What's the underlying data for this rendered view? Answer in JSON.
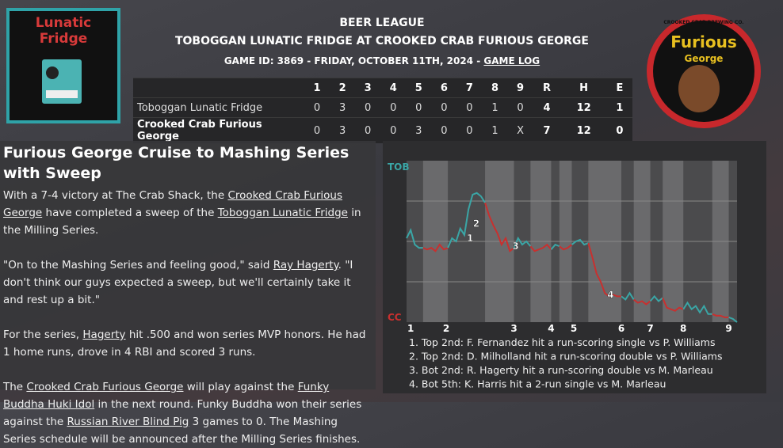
{
  "header": {
    "league": "BEER LEAGUE",
    "title": "TOBOGGAN LUNATIC FRIDGE AT CROOKED CRAB FURIOUS GEORGE",
    "game_info": "GAME ID: 3869 - FRIDAY, OCTOBER 11TH, 2024 - ",
    "game_log_link": "GAME LOG"
  },
  "logos": {
    "away": [
      "Lunatic",
      "Fridge"
    ],
    "home_brewery": "CROOKED CRAB BREWING CO.",
    "home": [
      "Furious",
      "George"
    ]
  },
  "box_score": {
    "columns": [
      "1",
      "2",
      "3",
      "4",
      "5",
      "6",
      "7",
      "8",
      "9",
      "R",
      "H",
      "E"
    ],
    "rows": [
      {
        "team": "Toboggan Lunatic Fridge",
        "cells": [
          0,
          3,
          0,
          0,
          0,
          0,
          0,
          1,
          0,
          4,
          12,
          1
        ]
      },
      {
        "team": "Crooked Crab Furious George",
        "cells": [
          0,
          3,
          0,
          0,
          3,
          0,
          0,
          1,
          "X",
          7,
          12,
          0
        ]
      }
    ]
  },
  "article": {
    "headline": "Furious George Cruise to Mashing Series with Sweep",
    "paragraphs": [
      [
        {
          "text": "With a 7-4 victory at The Crab Shack, the "
        },
        {
          "text": "Crooked Crab Furious George",
          "link": true
        },
        {
          "text": " have completed a sweep of the "
        },
        {
          "text": "Toboggan Lunatic Fridge",
          "link": true
        },
        {
          "text": " in the Milling Series."
        }
      ],
      [
        {
          "text": "\"On to the Mashing Series and feeling good,\" said "
        },
        {
          "text": "Ray Hagerty",
          "link": true
        },
        {
          "text": ". \"I don't think our guys expected a sweep, but we'll certainly take it and rest up a bit.\""
        }
      ],
      [
        {
          "text": "For the series, "
        },
        {
          "text": "Hagerty",
          "link": true
        },
        {
          "text": " hit .500 and won series MVP honors. He had 1 home runs, drove in 4 RBI and scored 3 runs."
        }
      ],
      [
        {
          "text": "The "
        },
        {
          "text": "Crooked Crab Furious George",
          "link": true
        },
        {
          "text": " will play against the "
        },
        {
          "text": "Funky Buddha Huki Idol",
          "link": true
        },
        {
          "text": " in the next round. Funky Buddha won their series against the "
        },
        {
          "text": "Russian River Blind Pig",
          "link": true
        },
        {
          "text": " 3 games to 0. The Mashing Series schedule will be announced after the Milling Series finishes."
        }
      ]
    ]
  },
  "chart_data": {
    "type": "line",
    "xlim": [
      0,
      80
    ],
    "ylim": [
      0,
      100
    ],
    "yticks": [
      {
        "value": 0,
        "label": "CC"
      },
      {
        "value": 25,
        "label": null
      },
      {
        "value": 50,
        "label": null
      },
      {
        "value": 75,
        "label": null
      },
      {
        "value": 100,
        "label": "TOB"
      }
    ],
    "ytick_colors": [
      "#c8302f",
      "#3aa6a6"
    ],
    "xticks": [
      {
        "value": 1,
        "label": "1"
      },
      {
        "value": 9.6,
        "label": "2"
      },
      {
        "value": 26,
        "label": "3"
      },
      {
        "value": 35,
        "label": "4"
      },
      {
        "value": 40.5,
        "label": "5"
      },
      {
        "value": 52,
        "label": "6"
      },
      {
        "value": 59,
        "label": "7"
      },
      {
        "value": 67,
        "label": "8"
      },
      {
        "value": 78,
        "label": "9"
      }
    ],
    "series": [
      {
        "color": "#3aa6a6",
        "x": [
          0,
          1,
          2,
          3,
          4
        ],
        "values": [
          52,
          57,
          48,
          46,
          46
        ]
      },
      {
        "color": "#c8302f",
        "x": [
          4,
          5,
          6,
          7,
          8,
          9,
          10
        ],
        "values": [
          46,
          45,
          46,
          44,
          48,
          45,
          46
        ]
      },
      {
        "color": "#3aa6a6",
        "x": [
          10,
          11,
          12,
          13,
          14,
          15,
          16,
          17,
          18,
          19
        ],
        "values": [
          46,
          52,
          50,
          58,
          54,
          70,
          79,
          80,
          78,
          74
        ]
      },
      {
        "color": "#c8302f",
        "x": [
          19,
          20,
          21,
          22,
          23,
          24,
          25,
          26
        ],
        "values": [
          74,
          66,
          60,
          55,
          48,
          52,
          44,
          46
        ]
      },
      {
        "color": "#3aa6a6",
        "x": [
          26,
          27,
          28,
          29,
          30
        ],
        "values": [
          46,
          52,
          48,
          50,
          47
        ]
      },
      {
        "color": "#c8302f",
        "x": [
          30,
          31,
          32,
          33,
          34,
          35
        ],
        "values": [
          47,
          44,
          45,
          46,
          48,
          45
        ]
      },
      {
        "color": "#3aa6a6",
        "x": [
          35,
          36,
          37
        ],
        "values": [
          45,
          48,
          47
        ]
      },
      {
        "color": "#c8302f",
        "x": [
          37,
          38,
          39,
          40
        ],
        "values": [
          47,
          45,
          46,
          48
        ]
      },
      {
        "color": "#3aa6a6",
        "x": [
          40,
          41,
          42,
          43,
          44
        ],
        "values": [
          48,
          50,
          51,
          48,
          49
        ]
      },
      {
        "color": "#c8302f",
        "x": [
          44,
          45,
          46,
          47,
          48,
          49,
          50,
          51,
          52
        ],
        "values": [
          49,
          40,
          30,
          25,
          18,
          16,
          17,
          16,
          16
        ]
      },
      {
        "color": "#3aa6a6",
        "x": [
          52,
          53,
          54,
          55
        ],
        "values": [
          16,
          14,
          18,
          14
        ]
      },
      {
        "color": "#c8302f",
        "x": [
          55,
          56,
          57,
          58,
          59
        ],
        "values": [
          14,
          12,
          13,
          11,
          13
        ]
      },
      {
        "color": "#3aa6a6",
        "x": [
          59,
          60,
          61,
          62
        ],
        "values": [
          13,
          16,
          13,
          15
        ]
      },
      {
        "color": "#c8302f",
        "x": [
          62,
          63,
          64,
          65,
          66,
          67
        ],
        "values": [
          15,
          9,
          8,
          7,
          9,
          8
        ]
      },
      {
        "color": "#3aa6a6",
        "x": [
          67,
          68,
          69,
          70,
          71,
          72,
          73,
          74
        ],
        "values": [
          8,
          12,
          8,
          10,
          6,
          10,
          5,
          5
        ]
      },
      {
        "color": "#c8302f",
        "x": [
          74,
          75,
          76,
          77,
          78
        ],
        "values": [
          5,
          4,
          4,
          3,
          3
        ]
      },
      {
        "color": "#3aa6a6",
        "x": [
          78,
          79,
          80
        ],
        "values": [
          3,
          2,
          0
        ]
      }
    ],
    "annotations": [
      {
        "label": "1",
        "x": 14,
        "y": 52
      },
      {
        "label": "2",
        "x": 15.5,
        "y": 61
      },
      {
        "label": "3",
        "x": 25,
        "y": 47
      },
      {
        "label": "4",
        "x": 48,
        "y": 17
      }
    ],
    "events": [
      "1. Top 2nd: F. Fernandez hit a run-scoring single vs P. Williams",
      "2. Top 2nd: D. Milholland hit a run-scoring double vs P. Williams",
      "3. Bot 2nd: R. Hagerty hit a run-scoring double vs M. Marleau",
      "4. Bot 5th: K. Harris hit a 2-run single vs M. Marleau"
    ]
  }
}
